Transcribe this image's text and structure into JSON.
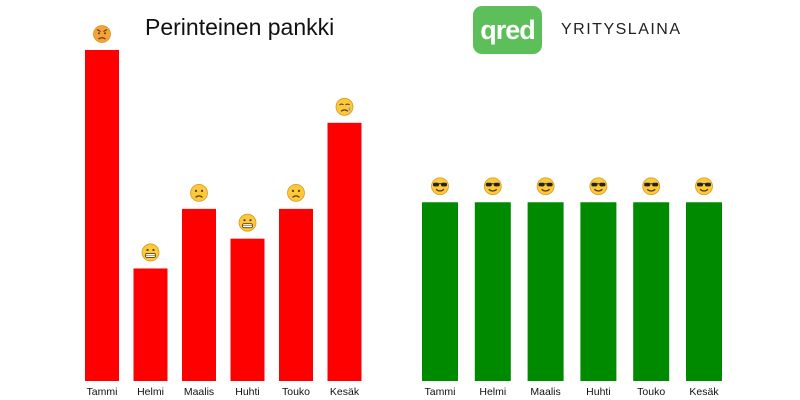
{
  "header": {
    "left_title": "Perinteinen pankki",
    "logo_text": "qred",
    "right_title": "YRITYSLAINA"
  },
  "colors": {
    "traditional_bar": "#ff0000",
    "qred_bar": "#008a00",
    "logo_bg": "#5cbf5a"
  },
  "chart_data": [
    {
      "type": "bar",
      "title": "Perinteinen pankki",
      "categories": [
        "Tammi",
        "Helmi",
        "Maalis",
        "Huhti",
        "Touko",
        "Kesäk"
      ],
      "values": [
        100,
        34,
        52,
        43,
        52,
        78
      ],
      "ylim": [
        0,
        100
      ],
      "grid": false,
      "emoji": [
        "angry",
        "grimacing",
        "frowning",
        "grimacing",
        "frowning",
        "crying"
      ]
    },
    {
      "type": "bar",
      "title": "YRITYSLAINA",
      "categories": [
        "Tammi",
        "Helmi",
        "Maalis",
        "Huhti",
        "Touko",
        "Kesäk"
      ],
      "values": [
        54,
        54,
        54,
        54,
        54,
        54
      ],
      "ylim": [
        0,
        100
      ],
      "grid": false,
      "emoji": [
        "sunglasses",
        "sunglasses",
        "sunglasses",
        "sunglasses",
        "sunglasses",
        "sunglasses"
      ]
    }
  ]
}
